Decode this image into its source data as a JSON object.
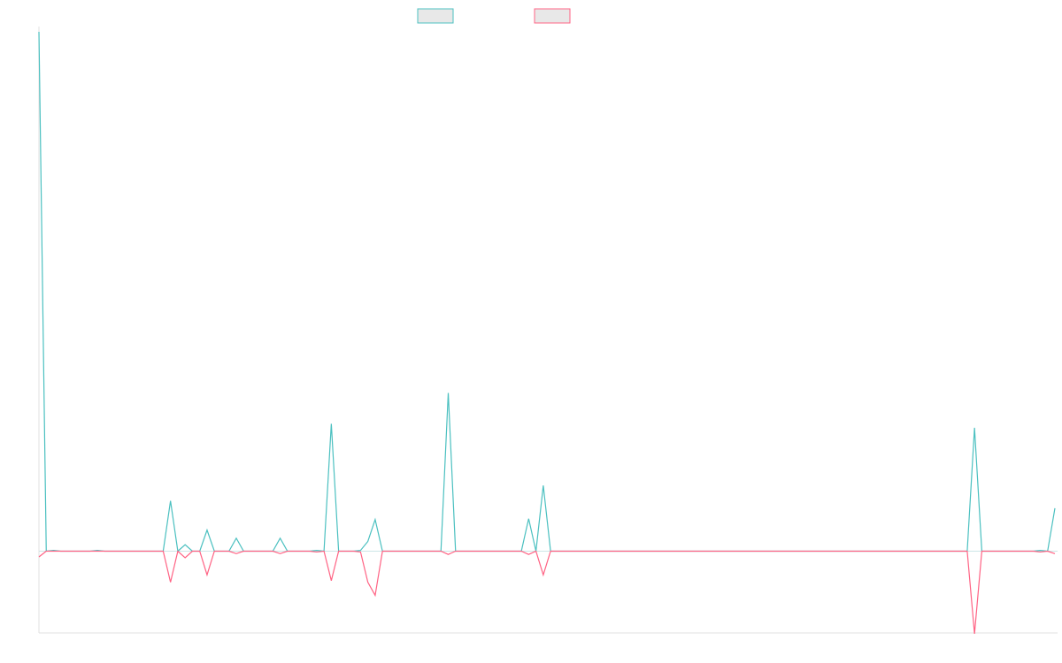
{
  "chart_data": {
    "type": "line",
    "title": "",
    "xlabel": "",
    "ylabel": "",
    "legend_placement": "top-center",
    "grid": false,
    "x_count": 140,
    "ylim": [
      -100,
      640
    ],
    "series": [
      {
        "color": "#4bc0c0",
        "points": [
          [
            0,
            640
          ],
          [
            1,
            0
          ],
          [
            2,
            1
          ],
          [
            8,
            1
          ],
          [
            18,
            62
          ],
          [
            20,
            8
          ],
          [
            23,
            26
          ],
          [
            27,
            16
          ],
          [
            33,
            16
          ],
          [
            38,
            1
          ],
          [
            40,
            157
          ],
          [
            44,
            1
          ],
          [
            45,
            12
          ],
          [
            46,
            39
          ],
          [
            56,
            195
          ],
          [
            67,
            40
          ],
          [
            69,
            81
          ],
          [
            128,
            152
          ],
          [
            137,
            1
          ],
          [
            139,
            53
          ]
        ]
      },
      {
        "color": "#ff6384",
        "points": [
          [
            0,
            -7
          ],
          [
            1,
            0
          ],
          [
            8,
            0
          ],
          [
            18,
            -38
          ],
          [
            20,
            -8
          ],
          [
            23,
            -29
          ],
          [
            27,
            -3
          ],
          [
            33,
            -3
          ],
          [
            38,
            -1
          ],
          [
            40,
            -36
          ],
          [
            44,
            -1
          ],
          [
            45,
            -38
          ],
          [
            46,
            -54
          ],
          [
            56,
            -4
          ],
          [
            67,
            -4
          ],
          [
            69,
            -29
          ],
          [
            128,
            -101
          ],
          [
            137,
            -1
          ],
          [
            139,
            -3
          ]
        ]
      }
    ]
  }
}
